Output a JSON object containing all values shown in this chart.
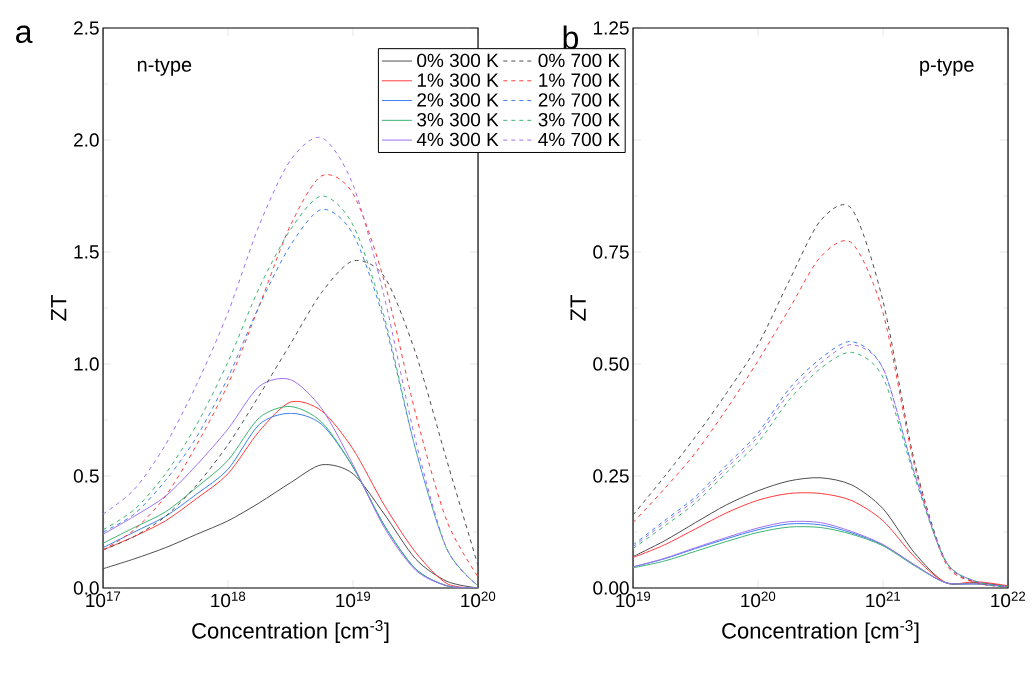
{
  "chart_data": [
    {
      "type": "line",
      "title": "a",
      "xlabel": "Concentration [cm$^{-3}$]",
      "ylabel": "ZT",
      "annotations": [
        "n-type"
      ],
      "log": "x",
      "legend": "top right",
      "x": [
        1e+17,
        1.778e+17,
        3.162e+17,
        5.623e+17,
        1e+18,
        1.778e+18,
        3.162e+18,
        5.623e+18,
        1e+19,
        1.778e+19,
        3.162e+19,
        5.623e+19,
        1e+20
      ],
      "xlim": [
        1e+17,
        1e+20
      ],
      "ylim": [
        0,
        2.5
      ],
      "xticks": [
        {
          "value": 1e+17,
          "label": "10$^{17}$"
        },
        {
          "value": 1e+18,
          "label": "10$^{18}$"
        },
        {
          "value": 1e+19,
          "label": "10$^{19}$"
        },
        {
          "value": 1e+20,
          "label": "10$^{20}$"
        }
      ],
      "yticks": [
        {
          "value": 0,
          "label": "0.0"
        },
        0.5,
        {
          "value": 1,
          "label": "1.0"
        },
        1.5,
        {
          "value": 2,
          "label": "2.0"
        },
        2.5
      ],
      "series": [
        {
          "name": "0% 300 K",
          "color": "#4d4d4d",
          "line_style": "solid",
          "values": [
            0.086,
            0.13,
            0.18,
            0.24,
            0.3,
            0.38,
            0.47,
            0.55,
            0.51,
            0.33,
            0.13,
            0.03,
            0.0
          ]
        },
        {
          "name": "1% 300 K",
          "color": "#ff3b3b",
          "line_style": "solid",
          "values": [
            0.17,
            0.23,
            0.3,
            0.4,
            0.51,
            0.7,
            0.83,
            0.79,
            0.62,
            0.37,
            0.16,
            0.02,
            0.0
          ]
        },
        {
          "name": "2% 300 K",
          "color": "#3a7ff0",
          "line_style": "solid",
          "values": [
            0.18,
            0.25,
            0.32,
            0.42,
            0.53,
            0.73,
            0.78,
            0.73,
            0.54,
            0.28,
            0.086,
            0.01,
            0.0
          ]
        },
        {
          "name": "3% 300 K",
          "color": "#3cb371",
          "line_style": "solid",
          "values": [
            0.2,
            0.27,
            0.34,
            0.45,
            0.57,
            0.76,
            0.81,
            0.74,
            0.54,
            0.28,
            0.085,
            0.01,
            0.0
          ]
        },
        {
          "name": "4% 300 K",
          "color": "#a070f0",
          "line_style": "solid",
          "values": [
            0.24,
            0.32,
            0.41,
            0.55,
            0.71,
            0.9,
            0.93,
            0.8,
            0.55,
            0.27,
            0.08,
            0.01,
            0.0
          ]
        },
        {
          "name": "0% 700 K",
          "color": "#4d4d4d",
          "line_style": "dashed",
          "values": [
            0.17,
            0.23,
            0.32,
            0.46,
            0.64,
            0.86,
            1.09,
            1.32,
            1.46,
            1.39,
            1.05,
            0.57,
            0.1
          ]
        },
        {
          "name": "1% 700 K",
          "color": "#ff3b3b",
          "line_style": "dashed",
          "values": [
            0.17,
            0.26,
            0.41,
            0.64,
            0.91,
            1.26,
            1.62,
            1.84,
            1.76,
            1.37,
            0.78,
            0.3,
            0.05
          ]
        },
        {
          "name": "2% 700 K",
          "color": "#3a7ff0",
          "line_style": "dashed",
          "values": [
            0.25,
            0.33,
            0.48,
            0.675,
            0.94,
            1.26,
            1.53,
            1.69,
            1.58,
            1.19,
            0.62,
            0.175,
            0.01
          ]
        },
        {
          "name": "3% 700 K",
          "color": "#3cb371",
          "line_style": "dashed",
          "values": [
            0.26,
            0.35,
            0.51,
            0.73,
            1.01,
            1.34,
            1.6,
            1.75,
            1.62,
            1.21,
            0.62,
            0.175,
            0.01
          ]
        },
        {
          "name": "4% 700 K",
          "color": "#a070f0",
          "line_style": "dashed",
          "values": [
            0.33,
            0.44,
            0.64,
            0.91,
            1.23,
            1.62,
            1.91,
            2.01,
            1.8,
            1.3,
            0.66,
            0.175,
            0.01
          ]
        }
      ]
    },
    {
      "type": "line",
      "title": "b",
      "xlabel": "Concentration [cm$^{-3}$]",
      "ylabel": "ZT",
      "annotations": [
        "p-type"
      ],
      "log": "x",
      "x": [
        1e+19,
        1.778e+19,
        3.162e+19,
        5.623e+19,
        1e+20,
        1.778e+20,
        3.162e+20,
        5.623e+20,
        1e+21,
        1.778e+21,
        3.162e+21,
        5.623e+21,
        1e+22
      ],
      "xlim": [
        1e+19,
        1e+22
      ],
      "ylim": [
        0,
        1.25
      ],
      "xticks": [
        {
          "value": 1e+19,
          "label": "10$^{19}$"
        },
        {
          "value": 1e+20,
          "label": "10$^{20}$"
        },
        {
          "value": 1e+21,
          "label": "10$^{21}$"
        },
        {
          "value": 1e+22,
          "label": "10$^{22}$"
        }
      ],
      "yticks": [
        {
          "value": 0,
          "label": "0.00"
        },
        {
          "value": 0.25,
          "label": "0.25"
        },
        {
          "value": 0.5,
          "label": "0.50"
        },
        {
          "value": 0.75,
          "label": "0.75"
        },
        {
          "value": 1.0,
          "label": null
        },
        {
          "value": 1.25,
          "label": "1.25"
        }
      ],
      "series": [
        {
          "color": "#4d4d4d",
          "line_style": "solid",
          "values": [
            0.07,
            0.105,
            0.146,
            0.186,
            0.217,
            0.239,
            0.246,
            0.23,
            0.177,
            0.079,
            0.012,
            0.012,
            0.004
          ]
        },
        {
          "color": "#ff3b3b",
          "line_style": "solid",
          "values": [
            0.068,
            0.096,
            0.132,
            0.168,
            0.196,
            0.211,
            0.211,
            0.195,
            0.15,
            0.07,
            0.012,
            0.014,
            0.005
          ]
        },
        {
          "color": "#3a7ff0",
          "line_style": "solid",
          "values": [
            0.047,
            0.065,
            0.088,
            0.11,
            0.13,
            0.143,
            0.141,
            0.123,
            0.096,
            0.052,
            0.012,
            0.009,
            0.003
          ]
        },
        {
          "color": "#3cb371",
          "line_style": "solid",
          "values": [
            0.045,
            0.06,
            0.082,
            0.104,
            0.124,
            0.136,
            0.135,
            0.12,
            0.094,
            0.05,
            0.012,
            0.009,
            0.003
          ]
        },
        {
          "color": "#a070f0",
          "line_style": "solid",
          "values": [
            0.047,
            0.066,
            0.09,
            0.113,
            0.134,
            0.148,
            0.146,
            0.126,
            0.097,
            0.052,
            0.012,
            0.009,
            0.003
          ]
        },
        {
          "color": "#4d4d4d",
          "line_style": "dashed",
          "values": [
            0.163,
            0.248,
            0.338,
            0.436,
            0.543,
            0.686,
            0.82,
            0.846,
            0.64,
            0.284,
            0.061,
            0.012,
            0.003
          ]
        },
        {
          "color": "#ff3b3b",
          "line_style": "dashed",
          "values": [
            0.146,
            0.221,
            0.302,
            0.4,
            0.507,
            0.623,
            0.739,
            0.77,
            0.614,
            0.275,
            0.056,
            0.012,
            0.003
          ]
        },
        {
          "color": "#3a7ff0",
          "line_style": "dashed",
          "values": [
            0.096,
            0.15,
            0.204,
            0.275,
            0.346,
            0.445,
            0.512,
            0.55,
            0.49,
            0.257,
            0.061,
            0.014,
            0.003
          ]
        },
        {
          "color": "#3cb371",
          "line_style": "dashed",
          "values": [
            0.088,
            0.138,
            0.19,
            0.258,
            0.325,
            0.42,
            0.49,
            0.526,
            0.47,
            0.25,
            0.06,
            0.014,
            0.003
          ]
        },
        {
          "color": "#a070f0",
          "line_style": "dashed",
          "values": [
            0.092,
            0.145,
            0.198,
            0.268,
            0.338,
            0.435,
            0.502,
            0.543,
            0.49,
            0.257,
            0.061,
            0.014,
            0.003
          ]
        }
      ]
    }
  ]
}
